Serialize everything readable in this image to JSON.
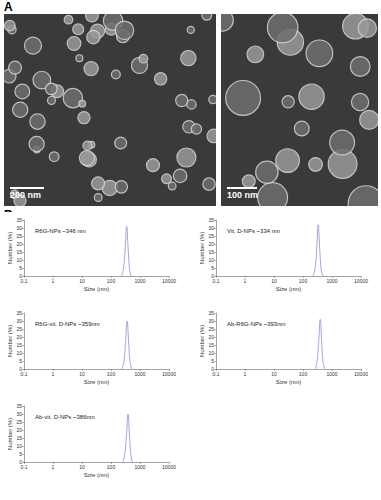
{
  "panel_labels": [
    "A",
    "B"
  ],
  "images": [
    {
      "scale_bar": "200 nm"
    },
    {
      "scale_bar": "100 nm"
    }
  ],
  "chart_data": [
    {
      "type": "line",
      "annotation": "R6G-NPs ~346 nm",
      "x_label": "Size (nm)",
      "y_label": "Number (%)",
      "x": [
        230,
        270,
        310,
        346,
        390,
        440,
        500
      ],
      "values": [
        0,
        5,
        18,
        31,
        17,
        4,
        0
      ],
      "color": "#9b9bd0",
      "log": "x",
      "xlim": [
        0.1,
        10000
      ],
      "xticks": [
        0.1,
        1,
        10,
        100,
        1000,
        10000
      ],
      "ylim": [
        0,
        35
      ],
      "yticks": [
        0,
        5,
        10,
        15,
        20,
        25,
        30,
        35
      ],
      "grid": false
    },
    {
      "type": "line",
      "annotation": "Vit. D-NPs ~334 nm",
      "x_label": "Size (nm)",
      "y_label": "Number (%)",
      "x": [
        225,
        262,
        300,
        334,
        375,
        425,
        485
      ],
      "values": [
        0,
        5,
        19,
        32,
        18,
        4,
        0
      ],
      "color": "#9b9bd0",
      "log": "x",
      "xlim": [
        0.1,
        10000
      ],
      "xticks": [
        0.1,
        1,
        10,
        100,
        1000,
        10000
      ],
      "ylim": [
        0,
        35
      ],
      "yticks": [
        0,
        5,
        10,
        15,
        20,
        25,
        30,
        35
      ],
      "grid": false
    },
    {
      "type": "line",
      "annotation": "R6G-vit. D-NPs ~359nm",
      "x_label": "Size (nm)",
      "y_label": "Number (%)",
      "x": [
        240,
        280,
        320,
        359,
        405,
        455,
        520
      ],
      "values": [
        0,
        5,
        18,
        30,
        17,
        4,
        0
      ],
      "color": "#9b9bd0",
      "log": "x",
      "xlim": [
        0.1,
        10000
      ],
      "xticks": [
        0.1,
        1,
        10,
        100,
        1000,
        10000
      ],
      "ylim": [
        0,
        35
      ],
      "yticks": [
        0,
        5,
        10,
        15,
        20,
        25,
        30,
        35
      ],
      "grid": false
    },
    {
      "type": "line",
      "annotation": "Ab-R6G-NPs ~393nm",
      "x_label": "Size (nm)",
      "y_label": "Number (%)",
      "x": [
        265,
        305,
        350,
        393,
        440,
        495,
        560
      ],
      "values": [
        0,
        5,
        18,
        31,
        17,
        4,
        0
      ],
      "color": "#9b9bd0",
      "log": "x",
      "xlim": [
        0.1,
        10000
      ],
      "xticks": [
        0.1,
        1,
        10,
        100,
        1000,
        10000
      ],
      "ylim": [
        0,
        35
      ],
      "yticks": [
        0,
        5,
        10,
        15,
        20,
        25,
        30,
        35
      ],
      "grid": false
    },
    {
      "type": "line",
      "annotation": "Ab-vit. D-NPs ~386nm",
      "x_label": "Size (nm)",
      "y_label": "Number (%)",
      "x": [
        260,
        300,
        345,
        386,
        432,
        488,
        550
      ],
      "values": [
        0,
        5,
        18,
        30,
        17,
        4,
        0
      ],
      "color": "#9b9bd0",
      "log": "x",
      "xlim": [
        0.1,
        10000
      ],
      "xticks": [
        0.1,
        1,
        10,
        100,
        1000,
        10000
      ],
      "ylim": [
        0,
        35
      ],
      "yticks": [
        0,
        5,
        10,
        15,
        20,
        25,
        30,
        35
      ],
      "grid": false
    }
  ]
}
